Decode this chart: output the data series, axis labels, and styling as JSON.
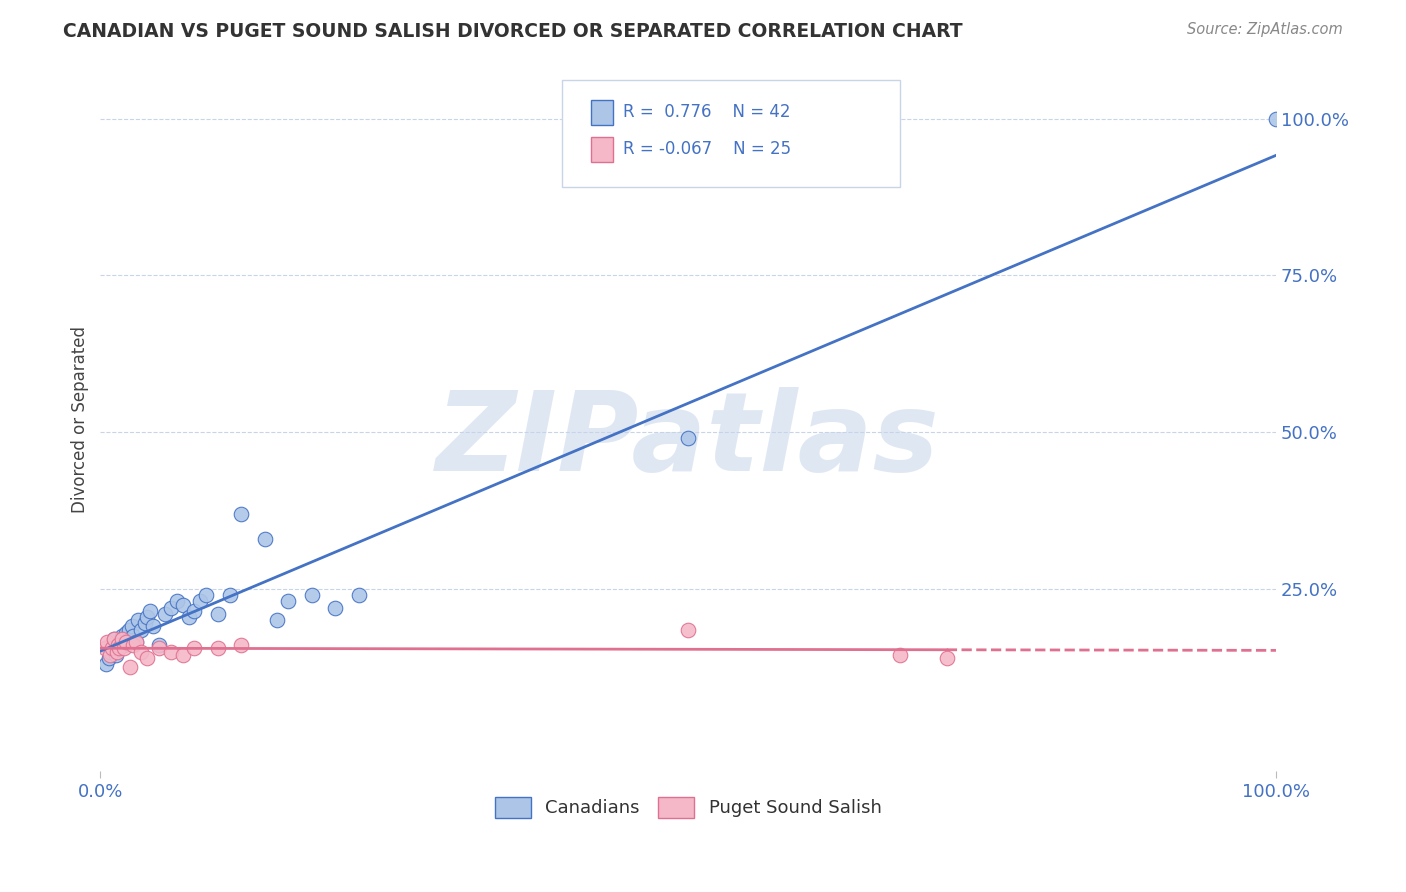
{
  "title": "CANADIAN VS PUGET SOUND SALISH DIVORCED OR SEPARATED CORRELATION CHART",
  "source": "Source: ZipAtlas.com",
  "ylabel": "Divorced or Separated",
  "watermark": "ZIPatlas",
  "canadians": {
    "R": 0.776,
    "N": 42,
    "color": "#adc6e8",
    "line_color": "#4472c4",
    "x": [
      0.005,
      0.007,
      0.008,
      0.01,
      0.012,
      0.013,
      0.015,
      0.017,
      0.018,
      0.02,
      0.022,
      0.024,
      0.025,
      0.027,
      0.028,
      0.03,
      0.032,
      0.035,
      0.038,
      0.04,
      0.042,
      0.045,
      0.05,
      0.055,
      0.06,
      0.065,
      0.07,
      0.075,
      0.08,
      0.085,
      0.09,
      0.1,
      0.11,
      0.12,
      0.14,
      0.15,
      0.16,
      0.18,
      0.2,
      0.22,
      0.5,
      1.0
    ],
    "y": [
      0.13,
      0.14,
      0.15,
      0.16,
      0.17,
      0.145,
      0.155,
      0.165,
      0.175,
      0.16,
      0.18,
      0.185,
      0.17,
      0.19,
      0.175,
      0.165,
      0.2,
      0.185,
      0.195,
      0.205,
      0.215,
      0.19,
      0.16,
      0.21,
      0.22,
      0.23,
      0.225,
      0.205,
      0.215,
      0.23,
      0.24,
      0.21,
      0.24,
      0.37,
      0.33,
      0.2,
      0.23,
      0.24,
      0.22,
      0.24,
      0.49,
      1.0
    ]
  },
  "puget": {
    "R": -0.067,
    "N": 25,
    "color": "#f4b8c8",
    "line_color": "#e07090",
    "x": [
      0.004,
      0.006,
      0.008,
      0.01,
      0.012,
      0.014,
      0.015,
      0.016,
      0.018,
      0.02,
      0.022,
      0.025,
      0.028,
      0.03,
      0.035,
      0.04,
      0.05,
      0.06,
      0.07,
      0.08,
      0.1,
      0.12,
      0.5,
      0.68,
      0.72
    ],
    "y": [
      0.155,
      0.165,
      0.145,
      0.155,
      0.17,
      0.15,
      0.16,
      0.155,
      0.17,
      0.155,
      0.165,
      0.125,
      0.16,
      0.165,
      0.15,
      0.14,
      0.155,
      0.15,
      0.145,
      0.155,
      0.155,
      0.16,
      0.185,
      0.145,
      0.14
    ]
  },
  "xlim": [
    0.0,
    1.0
  ],
  "ylim": [
    -0.04,
    1.08
  ],
  "xticks": [
    0.0,
    1.0
  ],
  "xticklabels": [
    "0.0%",
    "100.0%"
  ],
  "ytick_positions": [
    0.25,
    0.5,
    0.75,
    1.0
  ],
  "yticklabels_right": [
    "25.0%",
    "50.0%",
    "75.0%",
    "100.0%"
  ],
  "grid_color": "#c8d4e8",
  "bg_color": "#ffffff",
  "title_color": "#333333",
  "tick_color": "#4472c4",
  "legend_box_color": "#e8eef8",
  "legend_text_color": "#4472c4",
  "bottom_legend": [
    "Canadians",
    "Puget Sound Salish"
  ]
}
